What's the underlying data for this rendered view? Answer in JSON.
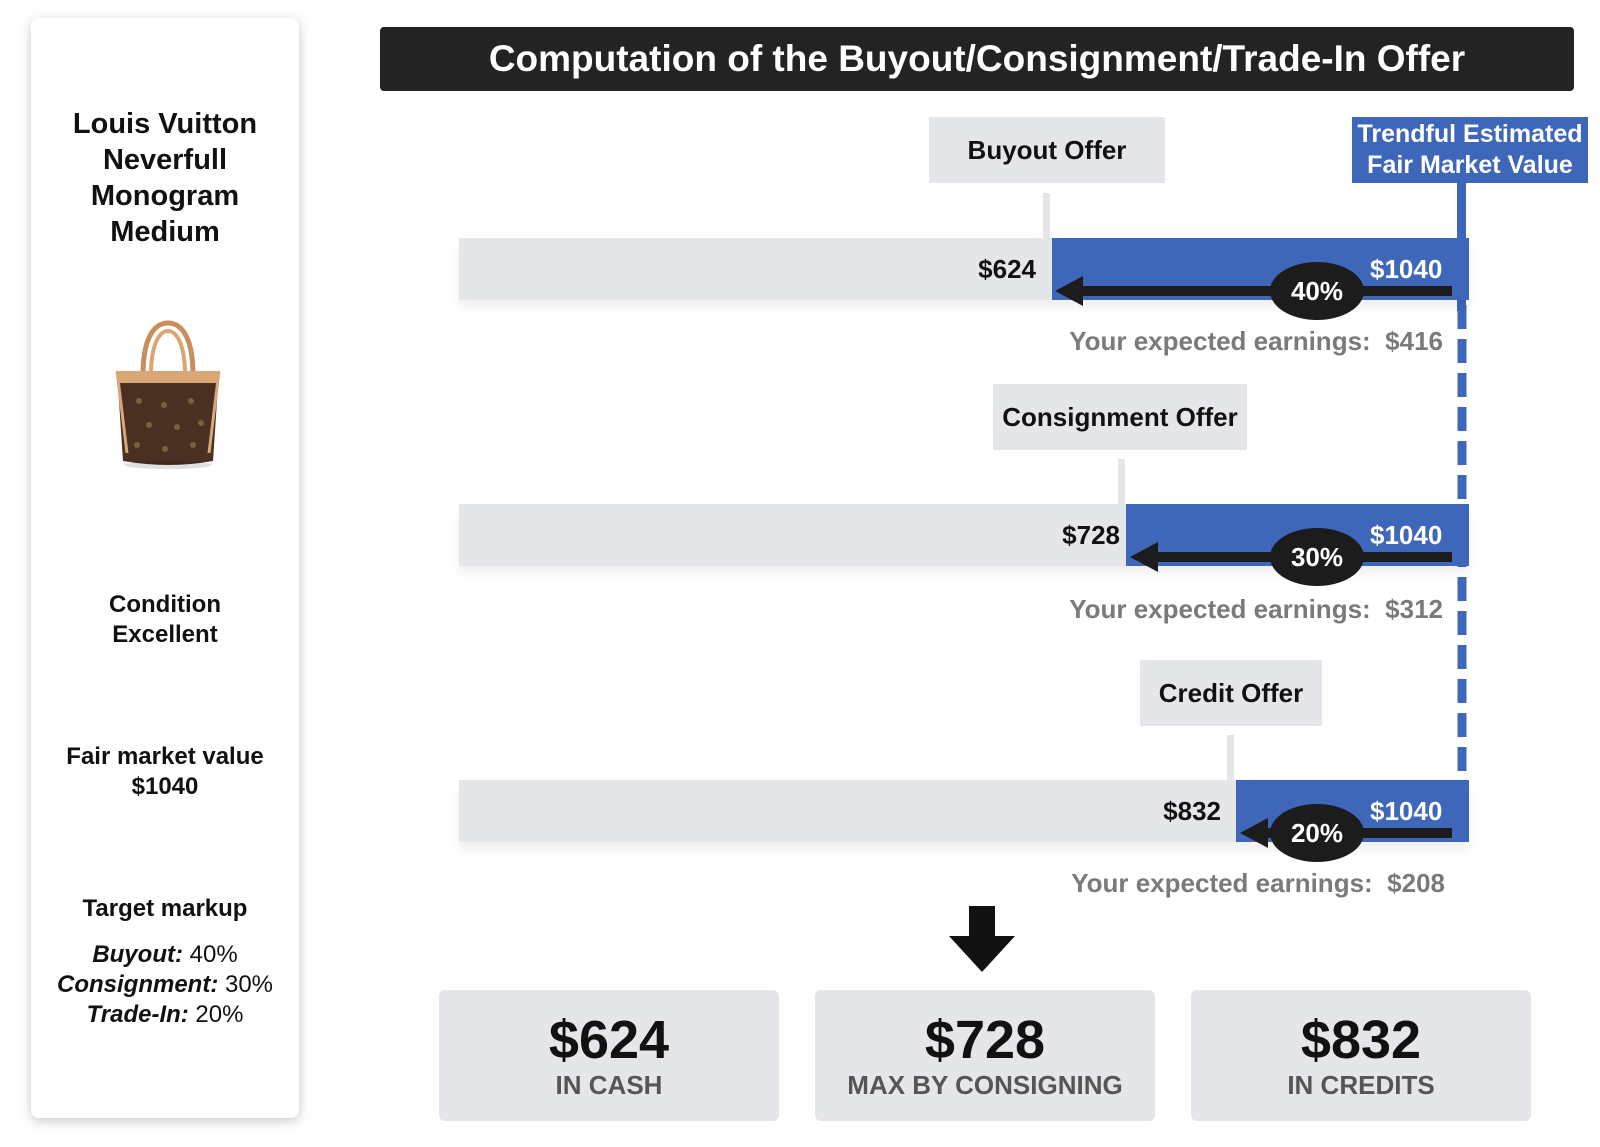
{
  "product": {
    "title_lines": [
      "Louis Vuitton",
      "Neverfull",
      "Monogram",
      "Medium"
    ],
    "condition_label": "Condition",
    "condition_value": "Excellent",
    "fmv_label": "Fair market value",
    "fmv_value": "$1040",
    "target_markup_label": "Target markup",
    "markups": [
      {
        "name": "Buyout:",
        "value": " 40%"
      },
      {
        "name": "Consignment:",
        "value": " 30%"
      },
      {
        "name": "Trade-In:",
        "value": " 20%"
      }
    ]
  },
  "title": "Computation of the Buyout/Consignment/Trade-In Offer",
  "fmv_box": {
    "line1": "Trendful Estimated",
    "line2": "Fair Market Value"
  },
  "offers": [
    {
      "label": "Buyout Offer",
      "offer_value": "$624",
      "fmv_value": "$1040",
      "percent": "40%",
      "earnings_label": "Your expected earnings:",
      "earnings_value": "$416"
    },
    {
      "label": "Consignment Offer",
      "offer_value": "$728",
      "fmv_value": "$1040",
      "percent": "30%",
      "earnings_label": "Your expected earnings:",
      "earnings_value": "$312"
    },
    {
      "label": "Credit Offer",
      "offer_value": "$832",
      "fmv_value": "$1040",
      "percent": "20%",
      "earnings_label": "Your expected earnings:",
      "earnings_value": "$208"
    }
  ],
  "summary": [
    {
      "value": "$624",
      "label": "IN CASH"
    },
    {
      "value": "$728",
      "label": "MAX BY CONSIGNING"
    },
    {
      "value": "$832",
      "label": "IN CREDITS"
    }
  ],
  "colors": {
    "accent": "#3e67b9",
    "bar_bg": "#e5e6ea",
    "dark": "#232323"
  }
}
